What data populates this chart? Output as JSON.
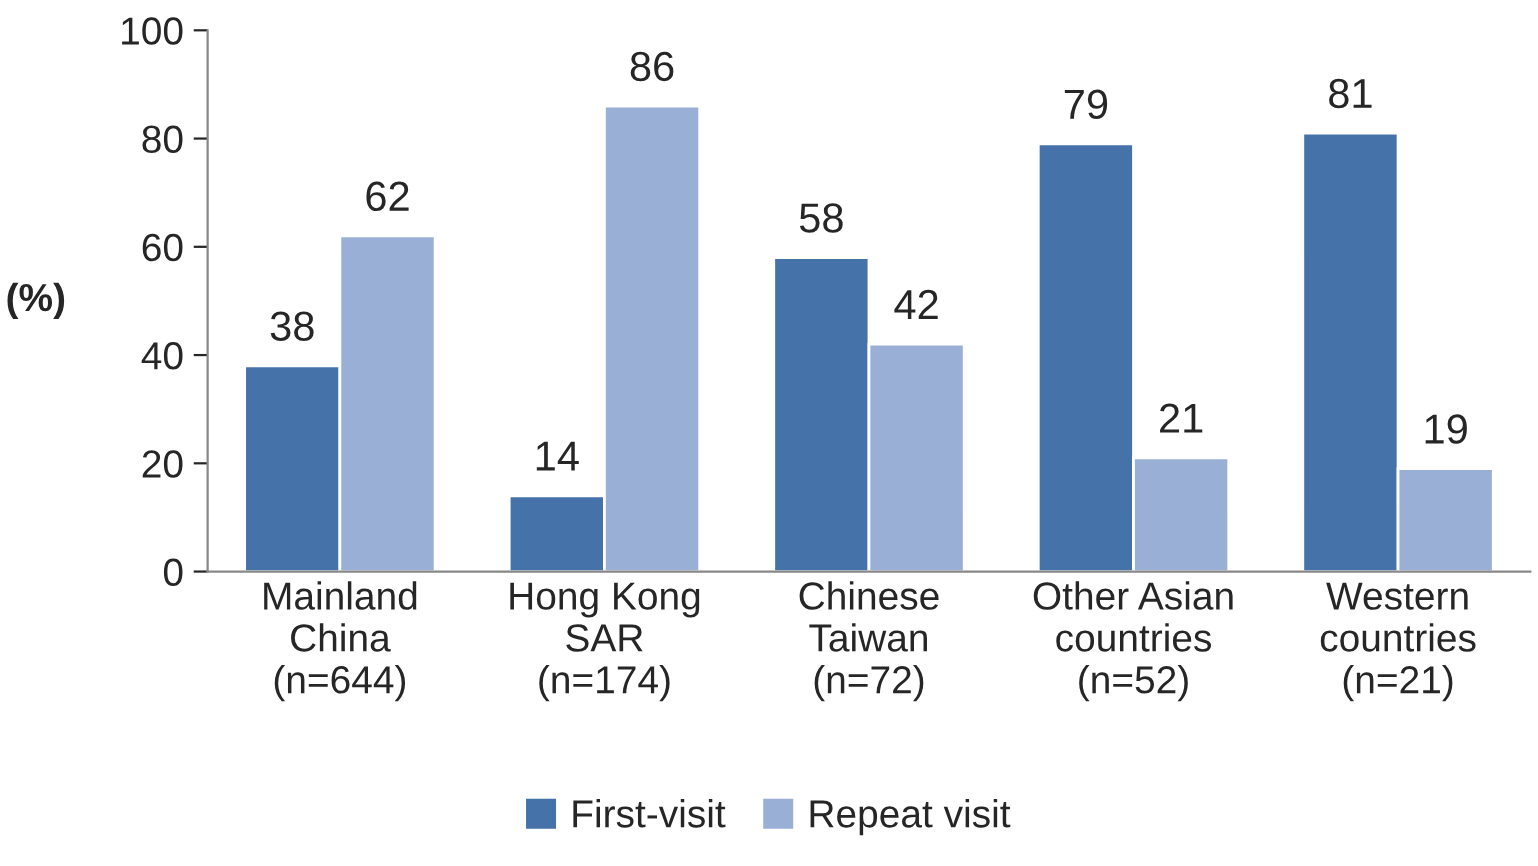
{
  "chart_data": {
    "type": "bar",
    "categories": [
      "Mainland\nChina\n(n=644)",
      "Hong Kong\nSAR\n(n=174)",
      "Chinese\nTaiwan\n(n=72)",
      "Other Asian\ncountries\n(n=52)",
      "Western\ncountries\n(n=21)"
    ],
    "series": [
      {
        "name": "First-visit",
        "color": "#4672aa",
        "values": [
          38,
          14,
          58,
          79,
          81
        ]
      },
      {
        "name": "Repeat visit",
        "color": "#99afd6",
        "values": [
          62,
          86,
          42,
          21,
          19
        ]
      }
    ],
    "ylabel": "(%)",
    "ylim": [
      0,
      100
    ],
    "yticks": [
      0,
      20,
      40,
      60,
      80,
      100
    ],
    "data_labels": true,
    "grid": false,
    "legend": "bottom"
  }
}
